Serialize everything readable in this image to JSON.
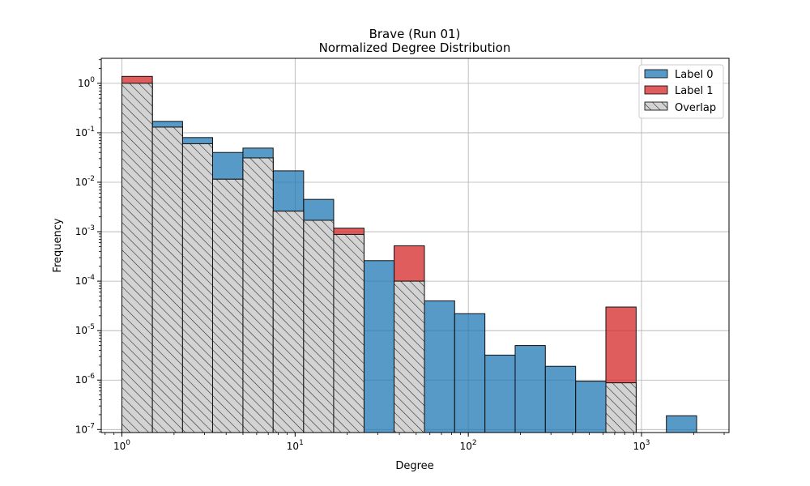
{
  "chart_data": {
    "type": "bar",
    "title_line1": "Brave (Run 01)",
    "title_line2": "Normalized Degree Distribution",
    "xlabel": "Degree",
    "ylabel": "Frequency",
    "xscale": "log",
    "yscale": "log",
    "xlim": [
      0.76,
      3200
    ],
    "ylim": [
      8.7e-08,
      3.2
    ],
    "grid": true,
    "legend_position": "top-right",
    "x_tick_labels": [
      "10^0",
      "10^1",
      "10^2",
      "10^3"
    ],
    "y_tick_labels": [
      "10^0",
      "10^-1",
      "10^-2",
      "10^-3",
      "10^-4",
      "10^-5",
      "10^-6",
      "10^-7"
    ],
    "bin_edges": [
      1,
      1.5,
      2.24,
      3.34,
      5,
      7.47,
      11.2,
      16.7,
      25,
      37.3,
      55.8,
      83.4,
      124.7,
      186.4,
      278.6,
      416.6,
      622.8,
      931,
      1392,
      2081
    ],
    "series": [
      {
        "name": "Label 0",
        "color": "#1f77b4",
        "values": [
          1.0,
          0.17,
          0.08,
          0.04,
          0.049,
          0.017,
          0.0045,
          0.00088,
          0.00026,
          0.0001,
          4e-05,
          2.2e-05,
          3.2e-06,
          5e-06,
          1.9e-06,
          9.5e-07,
          8.8e-07,
          0,
          1.9e-07
        ]
      },
      {
        "name": "Label 1",
        "color": "#d62728",
        "values": [
          1.38,
          0.13,
          0.06,
          0.0115,
          0.031,
          0.0026,
          0.0017,
          0.00118,
          0,
          0.00052,
          0,
          0,
          0,
          0,
          0,
          0,
          3e-05,
          0,
          0
        ]
      },
      {
        "name": "Overlap",
        "color": "#d3d3d3",
        "hatch": "diagonal",
        "values": [
          1.0,
          0.13,
          0.06,
          0.0115,
          0.031,
          0.0026,
          0.0017,
          0.00088,
          0,
          0.0001,
          0,
          0,
          0,
          0,
          0,
          0,
          8.8e-07,
          0,
          0
        ]
      }
    ]
  }
}
